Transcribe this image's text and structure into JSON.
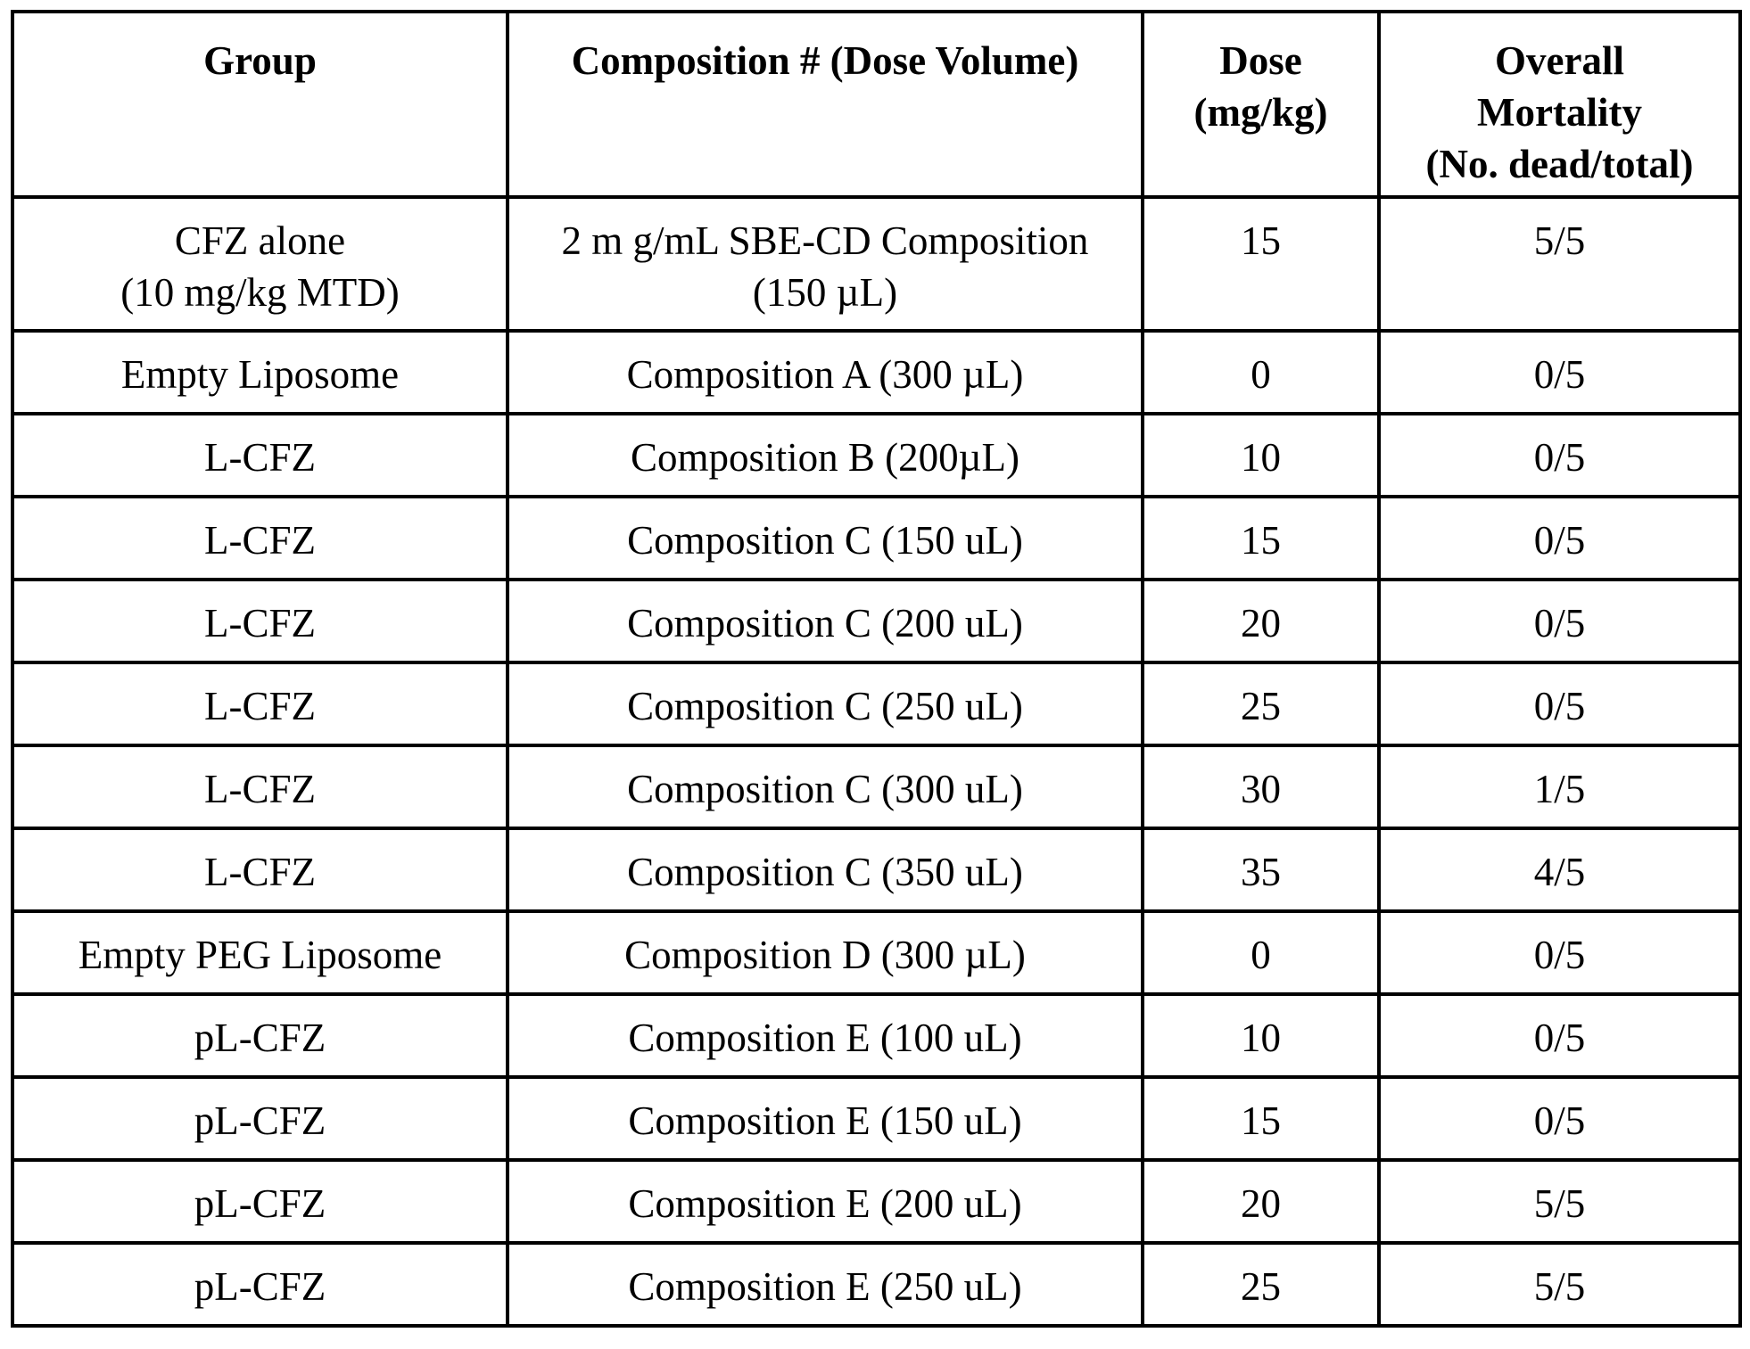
{
  "table": {
    "headers": [
      [
        "Group"
      ],
      [
        "Composition # (Dose Volume)"
      ],
      [
        "Dose",
        "(mg/kg)"
      ],
      [
        "Overall",
        "Mortality",
        "(No. dead/total)"
      ]
    ],
    "rows": [
      {
        "group": [
          "CFZ alone",
          "(10 mg/kg MTD)"
        ],
        "composition": [
          "2 m g/mL SBE-CD Composition",
          "(150 µL)"
        ],
        "dose": "15",
        "mortality": "5/5"
      },
      {
        "group": [
          "Empty Liposome"
        ],
        "composition": [
          "Composition A (300 µL)"
        ],
        "dose": "0",
        "mortality": "0/5"
      },
      {
        "group": [
          "L-CFZ"
        ],
        "composition": [
          "Composition B (200µL)"
        ],
        "dose": "10",
        "mortality": "0/5"
      },
      {
        "group": [
          "L-CFZ"
        ],
        "composition": [
          "Composition C (150 uL)"
        ],
        "dose": "15",
        "mortality": "0/5"
      },
      {
        "group": [
          "L-CFZ"
        ],
        "composition": [
          "Composition C (200 uL)"
        ],
        "dose": "20",
        "mortality": "0/5"
      },
      {
        "group": [
          "L-CFZ"
        ],
        "composition": [
          "Composition C (250 uL)"
        ],
        "dose": "25",
        "mortality": "0/5"
      },
      {
        "group": [
          "L-CFZ"
        ],
        "composition": [
          "Composition C (300 uL)"
        ],
        "dose": "30",
        "mortality": "1/5"
      },
      {
        "group": [
          "L-CFZ"
        ],
        "composition": [
          "Composition C (350 uL)"
        ],
        "dose": "35",
        "mortality": "4/5"
      },
      {
        "group": [
          "Empty PEG Liposome"
        ],
        "composition": [
          "Composition D (300 µL)"
        ],
        "dose": "0",
        "mortality": "0/5"
      },
      {
        "group": [
          "pL-CFZ"
        ],
        "composition": [
          "Composition E (100 uL)"
        ],
        "dose": "10",
        "mortality": "0/5"
      },
      {
        "group": [
          "pL-CFZ"
        ],
        "composition": [
          "Composition E (150 uL)"
        ],
        "dose": "15",
        "mortality": "0/5"
      },
      {
        "group": [
          "pL-CFZ"
        ],
        "composition": [
          "Composition E (200 uL)"
        ],
        "dose": "20",
        "mortality": "5/5"
      },
      {
        "group": [
          "pL-CFZ"
        ],
        "composition": [
          "Composition E (250 uL)"
        ],
        "dose": "25",
        "mortality": "5/5"
      }
    ]
  }
}
